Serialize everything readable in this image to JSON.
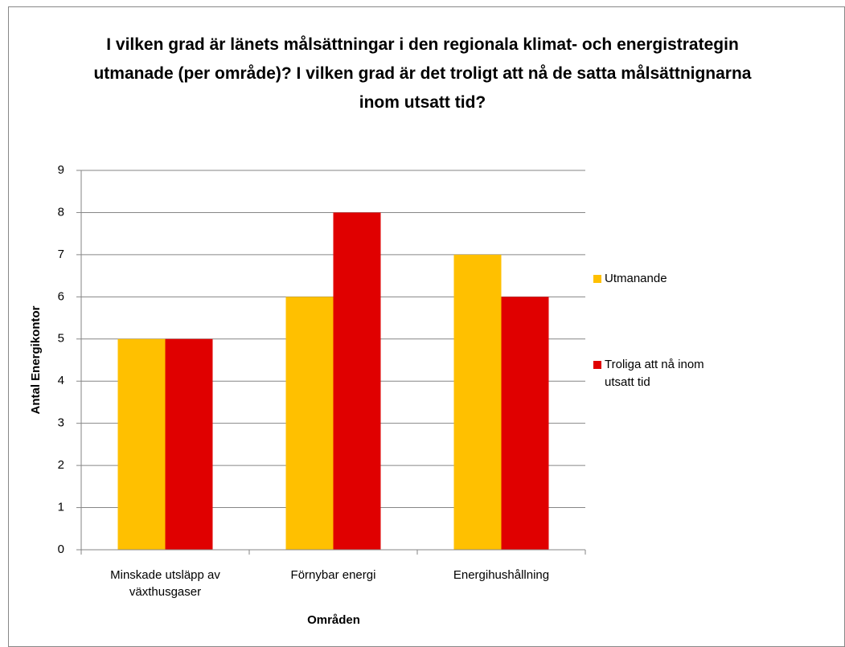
{
  "chart_data": {
    "type": "bar",
    "title": "I vilken grad är länets målsättningar i den regionala klimat- och energistrategin utmanade (per område)? I vilken grad är det troligt att nå de satta målsättnignarna inom utsatt tid?",
    "x_label": "Områden",
    "y_label": "Antal Energikontor",
    "categories": [
      "Minskade utsläpp av växthusgaser",
      "Förnybar energi",
      "Energihushållning"
    ],
    "series": [
      {
        "name": "Utmanande",
        "color": "#ffc000",
        "values": [
          5,
          6,
          7
        ]
      },
      {
        "name": "Troliga att nå inom utsatt tid",
        "color": "#e00000",
        "values": [
          5,
          8,
          6
        ]
      }
    ],
    "ylim": [
      0,
      9
    ],
    "yticks": [
      0,
      1,
      2,
      3,
      4,
      5,
      6,
      7,
      8,
      9
    ],
    "grid": true,
    "legend": "right"
  }
}
